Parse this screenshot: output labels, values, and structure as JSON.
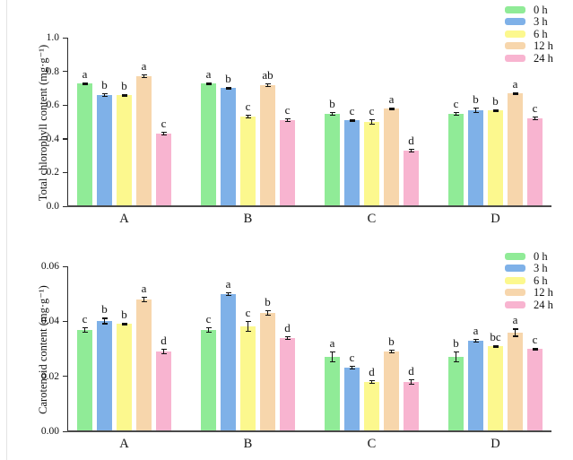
{
  "figure": {
    "background": "#ffffff"
  },
  "legend": {
    "entries": [
      {
        "label": "0 h",
        "color": "#90EB97"
      },
      {
        "label": "3 h",
        "color": "#7FB1E8"
      },
      {
        "label": "6 h",
        "color": "#FCF88E"
      },
      {
        "label": "12 h",
        "color": "#F7D6AC"
      },
      {
        "label": "24 h",
        "color": "#F8B4D0"
      }
    ]
  },
  "chart_data": [
    {
      "type": "bar",
      "title": "",
      "xlabel": "",
      "ylabel": "Total chlorophyll content (mg·g⁻¹)",
      "categories": [
        "A",
        "B",
        "C",
        "D"
      ],
      "ylim": [
        0,
        1.0
      ],
      "yticks": [
        "0.0",
        "0.2",
        "0.4",
        "0.6",
        "0.8",
        "1.0"
      ],
      "grid": false,
      "legend_position": "top-right",
      "series": [
        {
          "name": "0 h",
          "color": "#90EB97",
          "values": [
            0.73,
            0.73,
            0.55,
            0.55
          ],
          "errors": [
            0.008,
            0.008,
            0.01,
            0.012
          ],
          "letters": [
            "a",
            "a",
            "b",
            "c"
          ]
        },
        {
          "name": "3 h",
          "color": "#7FB1E8",
          "values": [
            0.66,
            0.7,
            0.51,
            0.57
          ],
          "errors": [
            0.01,
            0.008,
            0.008,
            0.015
          ],
          "letters": [
            "b",
            "b",
            "c",
            "b"
          ]
        },
        {
          "name": "6 h",
          "color": "#FCF88E",
          "values": [
            0.66,
            0.53,
            0.5,
            0.57
          ],
          "errors": [
            0.008,
            0.012,
            0.015,
            0.006
          ],
          "letters": [
            "b",
            "c",
            "c",
            "b"
          ]
        },
        {
          "name": "12 h",
          "color": "#F7D6AC",
          "values": [
            0.77,
            0.72,
            0.58,
            0.67
          ],
          "errors": [
            0.012,
            0.012,
            0.008,
            0.008
          ],
          "letters": [
            "a",
            "ab",
            "a",
            "a"
          ]
        },
        {
          "name": "24 h",
          "color": "#F8B4D0",
          "values": [
            0.43,
            0.51,
            0.33,
            0.52
          ],
          "errors": [
            0.01,
            0.01,
            0.012,
            0.01
          ],
          "letters": [
            "c",
            "c",
            "d",
            "c"
          ]
        }
      ]
    },
    {
      "type": "bar",
      "title": "",
      "xlabel": "",
      "ylabel": "Carotenoid content (mg·g⁻¹)",
      "categories": [
        "A",
        "B",
        "C",
        "D"
      ],
      "ylim": [
        0,
        0.06
      ],
      "yticks": [
        "0.00",
        "0.02",
        "0.04",
        "0.06"
      ],
      "grid": false,
      "legend_position": "top-right",
      "series": [
        {
          "name": "0 h",
          "color": "#90EB97",
          "values": [
            0.037,
            0.037,
            0.027,
            0.027
          ],
          "errors": [
            0.001,
            0.001,
            0.002,
            0.002
          ],
          "letters": [
            "c",
            "c",
            "a",
            "b"
          ]
        },
        {
          "name": "3 h",
          "color": "#7FB1E8",
          "values": [
            0.04,
            0.05,
            0.023,
            0.033
          ],
          "errors": [
            0.0012,
            0.0008,
            0.0006,
            0.0008
          ],
          "letters": [
            "b",
            "a",
            "c",
            "a"
          ]
        },
        {
          "name": "6 h",
          "color": "#FCF88E",
          "values": [
            0.039,
            0.038,
            0.018,
            0.031
          ],
          "errors": [
            0.0004,
            0.002,
            0.0008,
            0.0004
          ],
          "letters": [
            "b",
            "c",
            "d",
            "bc"
          ]
        },
        {
          "name": "12 h",
          "color": "#F7D6AC",
          "values": [
            0.048,
            0.043,
            0.029,
            0.036
          ],
          "errors": [
            0.001,
            0.001,
            0.0006,
            0.0015
          ],
          "letters": [
            "a",
            "b",
            "b",
            "a"
          ]
        },
        {
          "name": "24 h",
          "color": "#F8B4D0",
          "values": [
            0.029,
            0.034,
            0.018,
            0.03
          ],
          "errors": [
            0.001,
            0.0008,
            0.001,
            0.0004
          ],
          "letters": [
            "d",
            "d",
            "d",
            "c"
          ]
        }
      ]
    }
  ]
}
